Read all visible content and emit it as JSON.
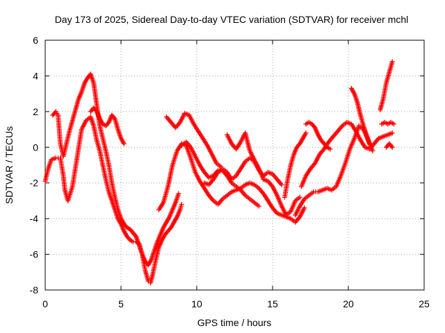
{
  "chart_data": {
    "type": "scatter",
    "title": "Day 173 of 2025, Sidereal Day-to-day VTEC variation (SDTVAR) for receiver mchl",
    "xlabel": "GPS time / hours",
    "ylabel": "SDTVAR / TECUs",
    "xlim": [
      0,
      25
    ],
    "ylim": [
      -8,
      6
    ],
    "x_ticks": [
      "0",
      "5",
      "10",
      "15",
      "20",
      "25"
    ],
    "y_ticks": [
      "-8",
      "-6",
      "-4",
      "-2",
      "0",
      "2",
      "4",
      "6"
    ],
    "grid": true,
    "marker": "+",
    "color": "#ff0000",
    "series": [
      {
        "x": [
          0.0,
          0.2,
          0.4,
          0.7,
          1.0,
          1.2,
          1.3,
          1.5,
          1.8,
          2.1,
          2.4,
          2.7,
          3.0,
          3.2,
          3.4,
          3.6,
          3.8,
          4.0,
          4.2,
          4.4,
          4.6,
          4.8,
          5.0,
          5.2,
          5.4,
          5.6,
          5.8,
          6.0,
          6.2,
          6.4,
          6.6,
          6.8,
          6.95,
          7.1,
          7.3,
          7.5,
          7.7,
          7.9,
          8.1,
          8.3,
          8.5,
          8.7,
          8.9,
          9.0
        ],
        "y": [
          -1.9,
          -1.2,
          -0.7,
          -0.6,
          -0.6,
          -1.6,
          -2.4,
          -3.0,
          -2.2,
          -0.6,
          1.0,
          1.5,
          1.7,
          1.2,
          0.4,
          -0.2,
          -1.0,
          -1.8,
          -2.5,
          -3.0,
          -3.5,
          -4.0,
          -4.3,
          -4.7,
          -5.0,
          -5.2,
          -5.3,
          -5.3,
          -5.4,
          -6.0,
          -6.9,
          -7.5,
          -7.6,
          -7.1,
          -6.3,
          -5.6,
          -5.2,
          -4.9,
          -4.7,
          -4.5,
          -4.2,
          -3.9,
          -3.5,
          -3.2
        ]
      },
      {
        "x": [
          0.5,
          0.7,
          0.85,
          1.0,
          1.2,
          1.4,
          1.6,
          1.8,
          2.0,
          2.2,
          2.4,
          2.6,
          2.8,
          3.0,
          3.2,
          3.4,
          3.6,
          3.8,
          4.0,
          4.2,
          4.4,
          4.6,
          4.8,
          5.0,
          5.2,
          5.4,
          5.6,
          5.8,
          6.0,
          6.2,
          6.4,
          6.6,
          6.8,
          7.0,
          7.2,
          7.4,
          7.6,
          7.8,
          8.0,
          8.2,
          8.4,
          8.6,
          8.8
        ],
        "y": [
          1.8,
          2.0,
          1.8,
          0.2,
          -0.5,
          0.2,
          0.9,
          1.5,
          2.1,
          2.7,
          3.1,
          3.6,
          3.9,
          4.1,
          3.6,
          2.4,
          1.2,
          0.5,
          -0.2,
          -1.0,
          -2.0,
          -2.8,
          -3.5,
          -4.0,
          -4.3,
          -4.5,
          -4.6,
          -4.8,
          -5.0,
          -5.5,
          -6.0,
          -6.4,
          -6.6,
          -6.3,
          -5.8,
          -5.3,
          -4.9,
          -4.5,
          -4.2,
          -3.9,
          -3.5,
          -3.1,
          -2.6
        ]
      },
      {
        "x": [
          3.0,
          3.2,
          3.4,
          3.6,
          3.8,
          4.0,
          4.2,
          4.4,
          4.6,
          4.8,
          5.0,
          5.2
        ],
        "y": [
          2.0,
          2.2,
          2.0,
          1.6,
          1.3,
          1.2,
          1.4,
          1.8,
          1.6,
          1.0,
          0.5,
          0.2
        ]
      },
      {
        "x": [
          8.0,
          8.3,
          8.6,
          8.9,
          9.2,
          9.5,
          9.8,
          10.1,
          10.4,
          10.7,
          11.0,
          11.3,
          11.6
        ],
        "y": [
          1.7,
          1.4,
          1.1,
          1.4,
          1.9,
          1.8,
          1.3,
          0.9,
          0.5,
          0.1,
          -0.4,
          -0.9,
          -1.1
        ]
      },
      {
        "x": [
          7.5,
          7.8,
          8.1,
          8.4,
          8.7,
          9.0,
          9.3,
          9.6,
          9.9,
          10.2,
          10.5,
          10.8,
          11.1,
          11.4,
          11.7,
          12.0,
          12.3,
          12.6,
          12.9,
          13.2,
          13.5,
          13.8,
          14.1,
          14.4,
          14.7,
          15.0,
          15.3,
          15.6,
          15.9,
          16.2,
          16.5,
          16.8,
          17.1
        ],
        "y": [
          -3.5,
          -3.1,
          -2.2,
          -1.0,
          -0.2,
          0.2,
          0.1,
          -0.6,
          -1.4,
          -1.9,
          -2.3,
          -2.7,
          -3.0,
          -3.2,
          -2.9,
          -2.7,
          -2.5,
          -2.4,
          -2.3,
          -2.1,
          -2.0,
          -2.1,
          -2.3,
          -2.6,
          -3.0,
          -3.4,
          -3.7,
          -3.8,
          -3.9,
          -4.0,
          -4.2,
          -3.9,
          -3.4
        ]
      },
      {
        "x": [
          9.0,
          9.3,
          9.6,
          9.9,
          10.2,
          10.5,
          10.8,
          11.1,
          11.4,
          11.7,
          12.0,
          12.3,
          12.6,
          12.9,
          13.2,
          13.5,
          13.8,
          14.1
        ],
        "y": [
          0.1,
          0.3,
          0.0,
          -0.5,
          -1.0,
          -1.4,
          -1.7,
          -1.6,
          -1.3,
          -1.3,
          -1.6,
          -2.0,
          -2.2,
          -2.4,
          -2.7,
          -2.9,
          -3.1,
          -3.3
        ]
      },
      {
        "x": [
          12.0,
          12.3,
          12.6,
          12.9,
          13.2,
          13.5,
          13.8,
          14.1,
          14.4,
          14.7,
          15.0,
          15.3,
          15.6,
          15.9,
          16.2,
          16.5,
          16.8
        ],
        "y": [
          0.7,
          0.2,
          -0.1,
          0.3,
          0.8,
          -0.2,
          -0.7,
          -1.2,
          -1.8,
          -1.9,
          -2.2,
          -2.7,
          -3.3,
          -3.8,
          -3.6,
          -3.0,
          -2.8
        ]
      },
      {
        "x": [
          10.5,
          10.8,
          11.1,
          11.4,
          11.7,
          12.0,
          12.3,
          12.6,
          12.9,
          13.2,
          13.5,
          13.8,
          14.1,
          14.4,
          14.7,
          15.0,
          15.3,
          15.6
        ],
        "y": [
          -2.0,
          -2.1,
          -1.8,
          -1.4,
          -1.2,
          -1.4,
          -1.8,
          -1.6,
          -1.2,
          -0.8,
          -0.6,
          -0.8,
          -1.3,
          -1.6,
          -1.4,
          -1.5,
          -1.8,
          -2.1
        ]
      },
      {
        "x": [
          15.8,
          16.0,
          16.2,
          16.4,
          16.6,
          16.8,
          17.0,
          17.2
        ],
        "y": [
          -2.8,
          -1.8,
          -1.0,
          -0.4,
          0.0,
          0.2,
          0.5,
          0.8
        ]
      },
      {
        "x": [
          16.9,
          17.2,
          17.5,
          17.8,
          18.1,
          18.4,
          18.7,
          19.0,
          19.3,
          19.6,
          19.9,
          20.2,
          20.5,
          20.8,
          21.1,
          21.4,
          21.7,
          22.0,
          22.3,
          22.6,
          22.9
        ],
        "y": [
          -2.2,
          -1.6,
          -1.2,
          -0.9,
          -0.4,
          -0.1,
          0.3,
          0.6,
          0.9,
          1.2,
          1.4,
          1.3,
          0.9,
          0.4,
          0.0,
          -0.1,
          0.2,
          0.5,
          0.6,
          0.7,
          0.8
        ]
      },
      {
        "x": [
          16.5,
          16.8,
          17.1,
          17.4,
          17.7,
          18.0,
          18.3,
          18.6,
          18.9,
          19.2,
          19.5,
          19.8,
          20.1,
          20.4,
          20.7,
          21.0,
          21.3,
          21.6
        ],
        "y": [
          -3.8,
          -3.3,
          -2.9,
          -2.7,
          -2.5,
          -2.5,
          -2.4,
          -2.3,
          -2.4,
          -2.2,
          -1.6,
          -0.9,
          -0.1,
          0.5,
          1.2,
          1.0,
          0.4,
          -0.2
        ]
      },
      {
        "x": [
          17.2,
          17.4,
          17.6,
          17.8,
          18.0,
          18.2,
          18.4,
          18.6,
          18.8
        ],
        "y": [
          1.3,
          1.4,
          1.3,
          1.1,
          0.7,
          0.4,
          0.2,
          0.0,
          -0.1
        ]
      },
      {
        "x": [
          20.2,
          20.4,
          20.6,
          20.8,
          21.0,
          21.2,
          21.4
        ],
        "y": [
          3.3,
          3.0,
          2.5,
          1.8,
          1.2,
          0.7,
          0.2
        ]
      },
      {
        "x": [
          22.1,
          22.3,
          22.5,
          22.7,
          22.9
        ],
        "y": [
          2.1,
          2.7,
          3.6,
          4.2,
          4.8
        ]
      },
      {
        "x": [
          22.2,
          22.4,
          22.6,
          22.8,
          23.0
        ],
        "y": [
          1.3,
          1.4,
          1.3,
          1.4,
          1.3
        ]
      },
      {
        "x": [
          22.5,
          22.7,
          22.9
        ],
        "y": [
          0.0,
          0.2,
          0.0
        ]
      }
    ]
  }
}
